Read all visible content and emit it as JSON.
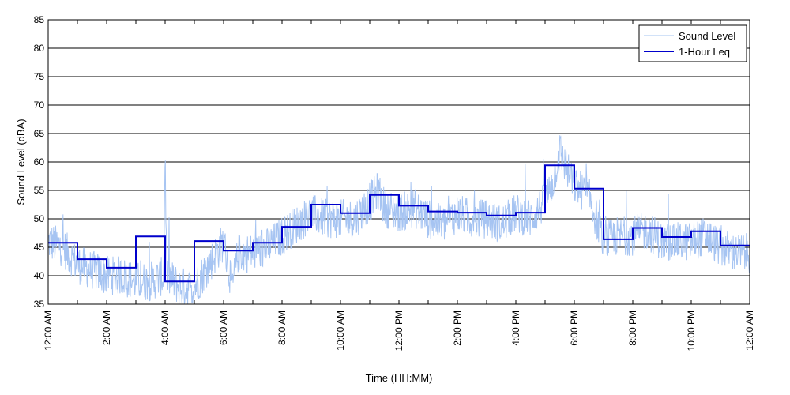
{
  "chart_data": {
    "type": "line",
    "xlabel": "Time (HH:MM)",
    "ylabel": "Sound Level (dBA)",
    "ylim": [
      35,
      85
    ],
    "y_ticks": [
      35,
      40,
      45,
      50,
      55,
      60,
      65,
      70,
      75,
      80,
      85
    ],
    "x_range_hours": [
      0,
      24
    ],
    "x_tick_labels": [
      "12:00 AM",
      "2:00 AM",
      "4:00 AM",
      "6:00 AM",
      "8:00 AM",
      "10:00 AM",
      "12:00 PM",
      "2:00 PM",
      "4:00 PM",
      "6:00 PM",
      "8:00 PM",
      "10:00 PM",
      "12:00 AM"
    ],
    "x_tick_hours": [
      0,
      2,
      4,
      6,
      8,
      10,
      12,
      14,
      16,
      18,
      20,
      22,
      24
    ],
    "grid": "horizontal",
    "legend": {
      "placement": "top-right",
      "entries": [
        "Sound Level",
        "1-Hour Leq"
      ]
    },
    "colors": {
      "sound_level": "#a6c4f2",
      "leq": "#0000cc"
    },
    "series": [
      {
        "name": "Sound Level",
        "style": "thin-line",
        "x_hours": [
          0,
          0.5,
          1,
          1.5,
          2,
          2.5,
          3,
          3.5,
          3.95,
          4,
          4.05,
          4.5,
          5,
          5.5,
          6,
          6.3,
          6.5,
          7,
          7.5,
          8,
          8.5,
          9,
          9.5,
          10,
          10.5,
          11,
          11.3,
          11.5,
          12,
          12.5,
          13,
          13.5,
          14,
          14.5,
          15,
          15.5,
          16,
          16.5,
          17,
          17.3,
          17.5,
          17.8,
          18,
          18.5,
          19,
          19.5,
          20,
          20.5,
          21,
          21.5,
          22,
          22.5,
          23,
          23.5,
          24
        ],
        "values": [
          46,
          45,
          42,
          41,
          40,
          40,
          39,
          39,
          40,
          63,
          40,
          38,
          38,
          42,
          46,
          38,
          44,
          44,
          45,
          47,
          49,
          51,
          50,
          50,
          50,
          53,
          55,
          52,
          51,
          52,
          50,
          49,
          51,
          50,
          50,
          49,
          51,
          50,
          53,
          57,
          62,
          58,
          56,
          54,
          46,
          47,
          47,
          48,
          46,
          46,
          46,
          47,
          45,
          44,
          44
        ]
      },
      {
        "name": "1-Hour Leq",
        "style": "step",
        "hours": [
          0,
          1,
          2,
          3,
          4,
          5,
          6,
          7,
          8,
          9,
          10,
          11,
          12,
          13,
          14,
          15,
          16,
          17,
          18,
          19,
          20,
          21,
          22,
          23
        ],
        "values": [
          45.8,
          42.9,
          41.4,
          46.9,
          39.0,
          46.1,
          44.4,
          45.8,
          48.6,
          52.5,
          51.0,
          54.2,
          52.3,
          51.3,
          51.1,
          50.6,
          51.1,
          59.4,
          55.3,
          46.4,
          48.4,
          46.8,
          47.8,
          45.3
        ]
      }
    ]
  }
}
